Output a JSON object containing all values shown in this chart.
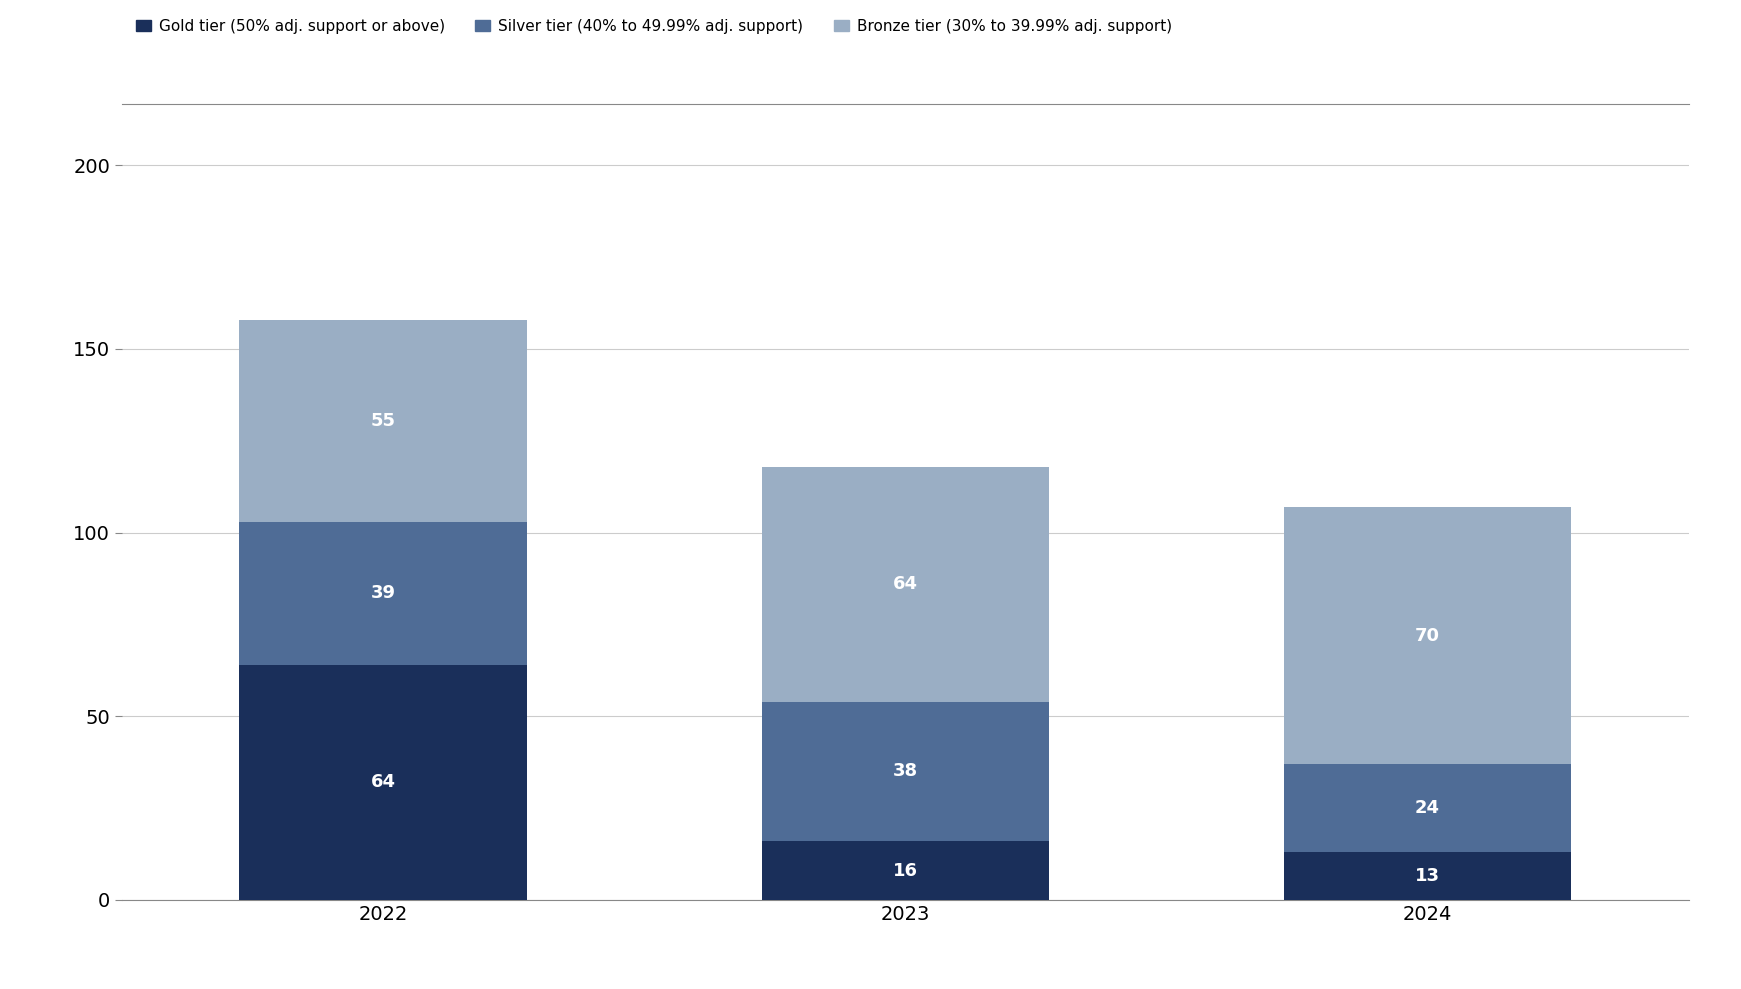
{
  "years": [
    "2022",
    "2023",
    "2024"
  ],
  "gold": [
    64,
    16,
    13
  ],
  "silver": [
    39,
    38,
    24
  ],
  "bronze": [
    55,
    64,
    70
  ],
  "gold_color": "#1a2f5a",
  "silver_color": "#4f6c96",
  "bronze_color": "#9aaec4",
  "bar_width": 0.55,
  "ylim": [
    0,
    210
  ],
  "yticks": [
    0,
    50,
    100,
    150,
    200
  ],
  "legend_labels": [
    "Gold tier (50% adj. support or above)",
    "Silver tier (40% to 49.99% adj. support)",
    "Bronze tier (30% to 39.99% adj. support)"
  ],
  "tick_fontsize": 14,
  "legend_fontsize": 11,
  "value_fontsize": 13,
  "background_color": "#ffffff",
  "grid_color": "#cccccc",
  "spine_color": "#888888"
}
